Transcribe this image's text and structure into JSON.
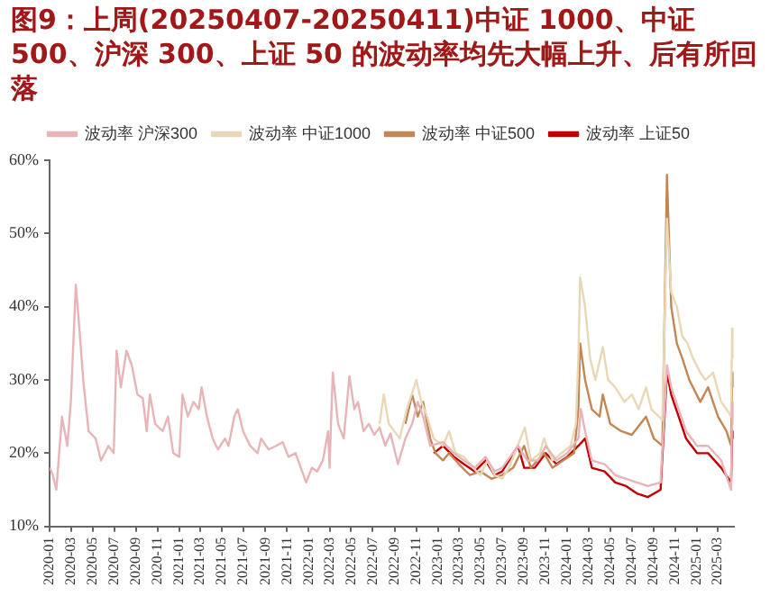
{
  "chart_data": {
    "type": "line",
    "title": "图9：上周(20250407-20250411)中证 1000、中证500、沪深 300、上证 50 的波动率均先大幅上升、后有所回落",
    "legend": "top",
    "grid": false,
    "marker": "none",
    "line_style": "solid",
    "xlim": [
      "2020-01-01",
      "2025-04-15"
    ],
    "xticks": [
      "2020-01",
      "2020-03",
      "2020-05",
      "2020-07",
      "2020-09",
      "2020-11",
      "2021-01",
      "2021-03",
      "2021-05",
      "2021-07",
      "2021-09",
      "2021-11",
      "2022-01",
      "2022-03",
      "2022-05",
      "2022-07",
      "2022-09",
      "2022-11",
      "2023-01",
      "2023-03",
      "2023-05",
      "2023-07",
      "2023-09",
      "2023-11",
      "2024-01",
      "2024-03",
      "2024-05",
      "2024-07",
      "2024-09",
      "2024-11",
      "2025-01",
      "2025-03"
    ],
    "ylim": [
      10,
      60
    ],
    "yticks": [
      {
        "value": 10,
        "label": "10%"
      },
      {
        "value": 20,
        "label": "20%"
      },
      {
        "value": 30,
        "label": "30%"
      },
      {
        "value": 40,
        "label": "40%"
      },
      {
        "value": 50,
        "label": "50%"
      },
      {
        "value": 60,
        "label": "60%"
      }
    ],
    "series": [
      {
        "name": "波动率 沪深300",
        "color": "#e8b4b8",
        "x": [
          "2020-01-02",
          "2020-01-10",
          "2020-01-20",
          "2020-02-05",
          "2020-02-20",
          "2020-03-01",
          "2020-03-15",
          "2020-03-25",
          "2020-04-05",
          "2020-04-20",
          "2020-05-10",
          "2020-05-25",
          "2020-06-15",
          "2020-06-30",
          "2020-07-08",
          "2020-07-20",
          "2020-08-05",
          "2020-08-20",
          "2020-09-05",
          "2020-09-20",
          "2020-10-01",
          "2020-10-10",
          "2020-10-25",
          "2020-11-15",
          "2020-11-30",
          "2020-12-15",
          "2021-01-01",
          "2021-01-10",
          "2021-01-25",
          "2021-02-10",
          "2021-02-25",
          "2021-03-05",
          "2021-03-20",
          "2021-04-05",
          "2021-04-20",
          "2021-05-10",
          "2021-05-20",
          "2021-06-05",
          "2021-06-15",
          "2021-06-30",
          "2021-07-20",
          "2021-08-10",
          "2021-08-20",
          "2021-09-10",
          "2021-10-01",
          "2021-10-20",
          "2021-11-05",
          "2021-11-25",
          "2021-12-10",
          "2021-12-25",
          "2022-01-10",
          "2022-01-25",
          "2022-02-10",
          "2022-02-25",
          "2022-03-01",
          "2022-03-10",
          "2022-03-25",
          "2022-04-10",
          "2022-04-26",
          "2022-05-10",
          "2022-05-20",
          "2022-06-05",
          "2022-06-20",
          "2022-07-05",
          "2022-07-20",
          "2022-08-05",
          "2022-08-20",
          "2022-09-10",
          "2022-10-01",
          "2022-10-20",
          "2022-11-05",
          "2022-11-20",
          "2022-12-10",
          "2023-01-15",
          "2023-02-15",
          "2023-03-15",
          "2023-04-15",
          "2023-05-15",
          "2023-06-10",
          "2023-07-01",
          "2023-08-15",
          "2023-09-10",
          "2023-10-10",
          "2023-11-01",
          "2023-12-01",
          "2024-01-01",
          "2024-02-01",
          "2024-02-08",
          "2024-02-20",
          "2024-03-10",
          "2024-04-15",
          "2024-05-15",
          "2024-06-15",
          "2024-07-15",
          "2024-08-15",
          "2024-09-20",
          "2024-10-08",
          "2024-10-20",
          "2024-11-10",
          "2024-12-01",
          "2025-01-01",
          "2025-02-01",
          "2025-03-10",
          "2025-04-07",
          "2025-04-10",
          "2025-04-11"
        ],
        "values": [
          18,
          17,
          15,
          25,
          21,
          27,
          43,
          37,
          30,
          23,
          22,
          19,
          21,
          20,
          34,
          29,
          34,
          32,
          28,
          27.5,
          23,
          28,
          24,
          23,
          25,
          20,
          19.5,
          28,
          25,
          27,
          26,
          29,
          25,
          22,
          20.5,
          22,
          21,
          25,
          26,
          23,
          21,
          20,
          22,
          20.5,
          21,
          21.5,
          19.5,
          20,
          18,
          16,
          18,
          17.5,
          19,
          23,
          18,
          31,
          24,
          22,
          30.5,
          26,
          27,
          23,
          24,
          22.5,
          23.5,
          21,
          22.7,
          18.5,
          22,
          24,
          27,
          25,
          21,
          21.5,
          20,
          19,
          18,
          19.5,
          17.5,
          18,
          21,
          19,
          19,
          21,
          19,
          20,
          22,
          26,
          23,
          19,
          18.5,
          17,
          16.5,
          16,
          15.5,
          16,
          32,
          29,
          26,
          23,
          21,
          21,
          19,
          15,
          27,
          24
        ]
      },
      {
        "name": "波动率 中证1000",
        "color": "#ead7b5",
        "x": [
          "2022-07-20",
          "2022-08-01",
          "2022-08-15",
          "2022-09-15",
          "2022-10-05",
          "2022-11-01",
          "2022-11-15",
          "2022-12-01",
          "2022-12-20",
          "2023-01-15",
          "2023-02-01",
          "2023-02-20",
          "2023-03-15",
          "2023-04-10",
          "2023-05-01",
          "2023-05-20",
          "2023-06-10",
          "2023-07-01",
          "2023-07-20",
          "2023-09-03",
          "2023-09-20",
          "2023-10-15",
          "2023-10-27",
          "2023-11-20",
          "2023-12-15",
          "2024-01-10",
          "2024-01-25",
          "2024-02-01",
          "2024-02-06",
          "2024-02-20",
          "2024-03-05",
          "2024-03-20",
          "2024-04-10",
          "2024-04-25",
          "2024-05-15",
          "2024-06-10",
          "2024-07-01",
          "2024-07-20",
          "2024-08-10",
          "2024-08-25",
          "2024-09-15",
          "2024-09-25",
          "2024-10-08",
          "2024-10-20",
          "2024-11-05",
          "2024-11-20",
          "2024-12-05",
          "2024-12-20",
          "2025-01-10",
          "2025-01-25",
          "2025-02-15",
          "2025-03-10",
          "2025-03-25",
          "2025-04-07",
          "2025-04-10",
          "2025-04-11"
        ],
        "values": [
          24,
          28,
          24,
          22,
          26,
          30,
          27,
          25,
          22,
          21,
          23,
          20,
          19.5,
          18,
          17,
          19,
          17,
          16.5,
          18,
          23.5,
          19,
          20,
          22,
          19,
          20,
          21,
          24,
          33,
          44,
          40,
          33,
          30,
          34.5,
          30,
          29,
          27,
          28,
          26,
          29,
          26,
          25,
          24.5,
          52,
          42,
          40,
          36,
          35,
          33,
          31,
          30,
          31,
          27,
          26,
          25,
          37,
          33
        ]
      },
      {
        "name": "波动率 中证500",
        "color": "#c48653",
        "x": [
          "2022-10-01",
          "2022-10-20",
          "2022-11-05",
          "2022-11-20",
          "2022-12-10",
          "2022-12-25",
          "2023-01-15",
          "2023-02-01",
          "2023-03-01",
          "2023-04-01",
          "2023-05-01",
          "2023-06-01",
          "2023-07-01",
          "2023-08-01",
          "2023-09-01",
          "2023-09-20",
          "2023-10-27",
          "2023-11-20",
          "2023-12-20",
          "2024-01-20",
          "2024-02-01",
          "2024-02-06",
          "2024-02-20",
          "2024-03-10",
          "2024-04-01",
          "2024-04-10",
          "2024-05-01",
          "2024-06-01",
          "2024-07-01",
          "2024-08-10",
          "2024-09-01",
          "2024-09-25",
          "2024-10-08",
          "2024-10-20",
          "2024-11-05",
          "2024-11-20",
          "2024-12-10",
          "2025-01-10",
          "2025-02-01",
          "2025-03-01",
          "2025-03-25",
          "2025-04-07",
          "2025-04-10",
          "2025-04-11"
        ],
        "values": [
          24,
          28,
          25,
          27,
          22,
          20,
          19,
          20,
          18.5,
          17,
          17.5,
          16.5,
          17,
          18,
          21,
          18,
          20,
          18,
          19,
          20,
          26,
          35,
          30,
          26,
          25,
          28,
          24,
          23,
          22.5,
          25,
          22,
          21,
          58,
          40,
          35,
          33,
          30,
          27,
          29,
          25,
          23,
          21,
          31,
          29
        ]
      },
      {
        "name": "波动率 上证50",
        "color": "#c00000",
        "x": [
          "2022-12-20",
          "2023-01-15",
          "2023-02-15",
          "2023-03-15",
          "2023-04-15",
          "2023-05-15",
          "2023-06-10",
          "2023-07-01",
          "2023-08-15",
          "2023-09-01",
          "2023-10-01",
          "2023-11-01",
          "2023-12-01",
          "2024-01-01",
          "2024-02-01",
          "2024-02-20",
          "2024-03-10",
          "2024-04-15",
          "2024-05-15",
          "2024-06-15",
          "2024-07-15",
          "2024-08-15",
          "2024-09-20",
          "2024-10-08",
          "2024-10-20",
          "2024-11-10",
          "2024-12-01",
          "2025-01-01",
          "2025-02-01",
          "2025-03-10",
          "2025-04-07",
          "2025-04-10",
          "2025-04-11"
        ],
        "values": [
          20,
          21,
          19.5,
          18.5,
          17.5,
          19,
          17,
          17.5,
          21,
          18,
          18,
          20,
          18.5,
          19.5,
          21,
          22,
          18,
          17.5,
          16,
          15.5,
          14.5,
          14,
          15,
          31,
          28,
          25,
          22,
          20,
          20,
          18,
          16,
          23,
          22
        ]
      }
    ]
  }
}
